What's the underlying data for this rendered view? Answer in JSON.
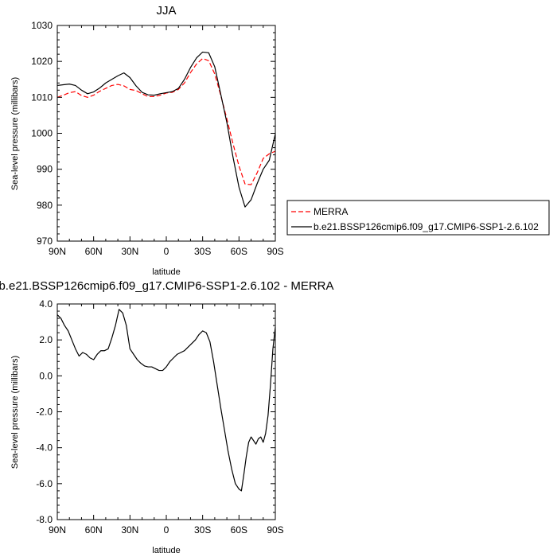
{
  "chart_data": [
    {
      "type": "line",
      "title": "JJA",
      "xlabel": "latitude",
      "ylabel": "Sea-level pressure (millibars)",
      "xlim": [
        90,
        -90
      ],
      "ylim": [
        970,
        1030
      ],
      "xticks": [
        90,
        60,
        30,
        0,
        -30,
        -60,
        -90
      ],
      "xticklabels": [
        "90N",
        "60N",
        "30N",
        "0",
        "30S",
        "60S",
        "90S"
      ],
      "yticks": [
        970,
        980,
        990,
        1000,
        1010,
        1020,
        1030
      ],
      "yticklabels": [
        "970",
        "980",
        "990",
        "1000",
        "1010",
        "1020",
        "1030"
      ],
      "legend_position": "right",
      "series": [
        {
          "name": "MERRA",
          "color": "#ff0000",
          "dash": "dashed",
          "x": [
            90,
            85,
            80,
            75,
            70,
            65,
            60,
            55,
            50,
            45,
            40,
            35,
            30,
            25,
            20,
            15,
            10,
            5,
            0,
            -5,
            -10,
            -15,
            -20,
            -25,
            -30,
            -35,
            -40,
            -45,
            -50,
            -55,
            -60,
            -65,
            -70,
            -75,
            -80,
            -85,
            -90
          ],
          "values": [
            1010.0,
            1010.6,
            1011.3,
            1011.6,
            1010.5,
            1010.0,
            1010.6,
            1011.7,
            1012.5,
            1013.3,
            1013.6,
            1013.2,
            1012.2,
            1011.9,
            1011.0,
            1010.2,
            1010.2,
            1010.6,
            1011.2,
            1011.4,
            1012.2,
            1014.0,
            1016.9,
            1019.3,
            1020.8,
            1020.2,
            1016.5,
            1010.5,
            1004.0,
            997.2,
            990.9,
            985.9,
            985.7,
            989.0,
            993.0,
            994.3,
            995.0
          ]
        },
        {
          "name": "b.e21.BSSP126cmip6.f09_g17.CMIP6-SSP1-2.6.102",
          "color": "#000000",
          "dash": "solid",
          "x": [
            90,
            85,
            80,
            75,
            70,
            65,
            60,
            55,
            50,
            45,
            40,
            35,
            30,
            25,
            20,
            15,
            10,
            5,
            0,
            -5,
            -10,
            -15,
            -20,
            -25,
            -30,
            -35,
            -40,
            -45,
            -50,
            -55,
            -60,
            -65,
            -70,
            -75,
            -80,
            -85,
            -90
          ],
          "values": [
            1013.3,
            1013.5,
            1013.7,
            1013.3,
            1012.0,
            1011.0,
            1011.5,
            1012.6,
            1014.0,
            1015.0,
            1016.0,
            1016.8,
            1015.5,
            1013.2,
            1011.4,
            1010.7,
            1010.6,
            1011.0,
            1011.3,
            1011.6,
            1012.5,
            1015.0,
            1018.3,
            1021.0,
            1022.6,
            1022.4,
            1018.5,
            1010.8,
            1003.0,
            993.5,
            985.0,
            979.5,
            981.5,
            986.0,
            990.0,
            992.5,
            999.8
          ]
        }
      ]
    },
    {
      "type": "line",
      "title": "b.e21.BSSP126cmip6.f09_g17.CMIP6-SSP1-2.6.102 - MERRA",
      "xlabel": "latitude",
      "ylabel": "Sea-level pressure (millibars)",
      "xlim": [
        90,
        -90
      ],
      "ylim": [
        -8,
        4
      ],
      "xticks": [
        90,
        60,
        30,
        0,
        -30,
        -60,
        -90
      ],
      "xticklabels": [
        "90N",
        "60N",
        "30N",
        "0",
        "30S",
        "60S",
        "90S"
      ],
      "yticks": [
        -8,
        -6,
        -4,
        -2,
        0,
        2,
        4
      ],
      "yticklabels": [
        "-8.0",
        "-6.0",
        "-4.0",
        "-2.0",
        "0.0",
        "2.0",
        "4.0"
      ],
      "series": [
        {
          "color": "#000000",
          "dash": "solid",
          "x": [
            90,
            87,
            84,
            81,
            78,
            75,
            72,
            69,
            66,
            63,
            60,
            57,
            54,
            51,
            48,
            45,
            42,
            39,
            36,
            33,
            30,
            27,
            24,
            21,
            18,
            15,
            12,
            9,
            6,
            3,
            0,
            -3,
            -6,
            -9,
            -12,
            -15,
            -18,
            -21,
            -24,
            -27,
            -30,
            -33,
            -36,
            -39,
            -42,
            -45,
            -48,
            -51,
            -54,
            -57,
            -60,
            -62,
            -64,
            -66,
            -68,
            -70,
            -72,
            -74,
            -76,
            -78,
            -80,
            -82,
            -84,
            -86,
            -88,
            -90
          ],
          "values": [
            3.4,
            3.2,
            2.8,
            2.5,
            2.0,
            1.5,
            1.1,
            1.3,
            1.2,
            1.0,
            0.9,
            1.2,
            1.4,
            1.4,
            1.5,
            2.1,
            2.8,
            3.7,
            3.5,
            2.8,
            1.5,
            1.2,
            0.9,
            0.7,
            0.55,
            0.5,
            0.5,
            0.4,
            0.3,
            0.3,
            0.5,
            0.8,
            1.0,
            1.2,
            1.3,
            1.4,
            1.6,
            1.8,
            2.0,
            2.3,
            2.5,
            2.4,
            1.9,
            0.8,
            -0.5,
            -1.8,
            -3.0,
            -4.2,
            -5.2,
            -6.0,
            -6.3,
            -6.4,
            -5.5,
            -4.5,
            -3.7,
            -3.4,
            -3.6,
            -3.8,
            -3.5,
            -3.4,
            -3.7,
            -3.2,
            -2.2,
            -0.5,
            1.5,
            2.7
          ]
        }
      ]
    }
  ]
}
